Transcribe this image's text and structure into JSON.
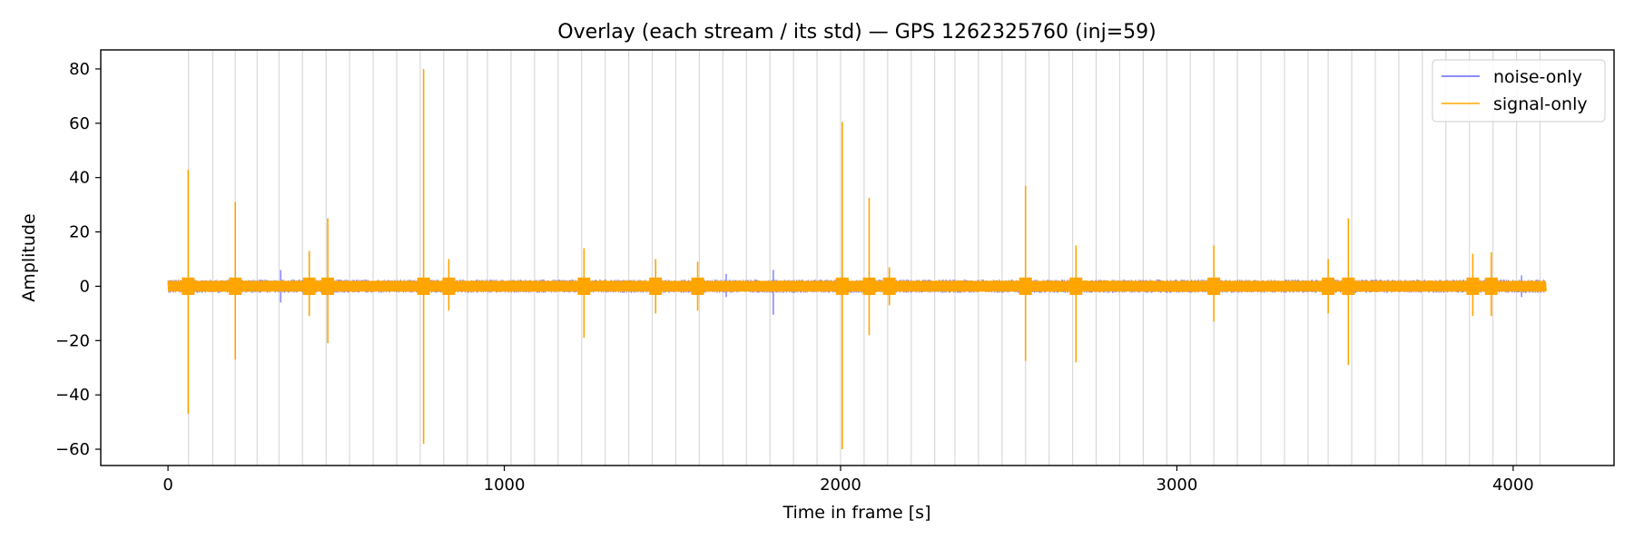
{
  "chart_data": {
    "type": "line",
    "title": "Overlay (each stream / its std) — GPS 1262325760 (inj=59)",
    "xlabel": "Time in frame [s]",
    "ylabel": "Amplitude",
    "xlim": [
      -200,
      4300
    ],
    "ylim": [
      -66,
      87
    ],
    "xticks": [
      0,
      1000,
      2000,
      3000,
      4000
    ],
    "yticks": [
      -60,
      -40,
      -20,
      0,
      20,
      40,
      60,
      80
    ],
    "grid": false,
    "legend_position": "top-right",
    "x_range": [
      0,
      4096
    ],
    "series": [
      {
        "name": "noise-only",
        "color": "#6666ff",
        "band_amplitude": 2.5,
        "notable_excursions": [
          {
            "t": 335,
            "low": -6,
            "high": 6
          },
          {
            "t": 1800,
            "low": -10.5,
            "high": 6
          },
          {
            "t": 1660,
            "low": -4,
            "high": 4.5
          },
          {
            "t": 4025,
            "low": -4,
            "high": 4
          }
        ]
      },
      {
        "name": "signal-only",
        "color": "#ffa500",
        "band_amplitude": 2.0,
        "events": [
          {
            "t": 60,
            "high": 43,
            "low": -47
          },
          {
            "t": 200,
            "high": 31,
            "low": -27
          },
          {
            "t": 420,
            "high": 13,
            "low": -11
          },
          {
            "t": 475,
            "high": 25,
            "low": -21
          },
          {
            "t": 760,
            "high": 80,
            "low": -58
          },
          {
            "t": 835,
            "high": 10,
            "low": -9
          },
          {
            "t": 1237,
            "high": 14,
            "low": -19
          },
          {
            "t": 1450,
            "high": 10,
            "low": -10
          },
          {
            "t": 1575,
            "high": 9,
            "low": -9
          },
          {
            "t": 2005,
            "high": 60.5,
            "low": -60
          },
          {
            "t": 2085,
            "high": 32.5,
            "low": -18
          },
          {
            "t": 2145,
            "high": 7,
            "low": -7
          },
          {
            "t": 2550,
            "high": 37,
            "low": -27.5
          },
          {
            "t": 2700,
            "high": 15,
            "low": -28
          },
          {
            "t": 3110,
            "high": 15,
            "low": -13
          },
          {
            "t": 3450,
            "high": 10,
            "low": -10
          },
          {
            "t": 3510,
            "high": 25,
            "low": -29
          },
          {
            "t": 3880,
            "high": 12,
            "low": -11
          },
          {
            "t": 3935,
            "high": 12.5,
            "low": -11
          }
        ]
      }
    ],
    "injection_marker_times": [
      61,
      133,
      200,
      265,
      330,
      400,
      470,
      540,
      610,
      680,
      750,
      820,
      890,
      950,
      1020,
      1090,
      1160,
      1230,
      1300,
      1370,
      1440,
      1510,
      1580,
      1650,
      1720,
      1790,
      1860,
      1930,
      2000,
      2070,
      2140,
      2210,
      2280,
      2340,
      2410,
      2480,
      2550,
      2620,
      2690,
      2760,
      2830,
      2900,
      2970,
      3040,
      3110,
      3180,
      3250,
      3320,
      3390,
      3450,
      3520,
      3590,
      3660,
      3730,
      3800,
      3870,
      3940,
      4010,
      4080
    ]
  }
}
